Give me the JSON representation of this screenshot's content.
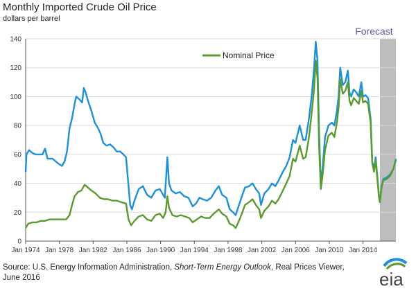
{
  "header": {
    "title": "Monthly Imported Crude Oil Price",
    "subtitle": "dollars per barrel"
  },
  "source": {
    "prefix": "Source: U.S. Energy Information Administration, ",
    "italic": "Short-Term Energy Outlook",
    "suffix": ", Real Prices Viewer,",
    "line2": "June 2016"
  },
  "logo_text": "eia",
  "colors": {
    "real": "#1e90d6",
    "nominal": "#5a9a2e",
    "forecast_band": "#bdbdbd",
    "forecast_label": "#5b5da8",
    "grid": "#d9d9d9"
  },
  "chart_data": {
    "type": "line",
    "title": "Monthly Imported Crude Oil Price",
    "ylabel": "dollars per barrel",
    "ylim": [
      0,
      140
    ],
    "xlim": [
      1974.0,
      2017.9
    ],
    "yticks": [
      0,
      20,
      40,
      60,
      80,
      100,
      120,
      140
    ],
    "xticks": [
      {
        "value": 1974,
        "label": "Jan 1974"
      },
      {
        "value": 1978,
        "label": "Jan 1978"
      },
      {
        "value": 1982,
        "label": "Jan 1982"
      },
      {
        "value": 1986,
        "label": "Jan 1986"
      },
      {
        "value": 1990,
        "label": "Jan 1990"
      },
      {
        "value": 1994,
        "label": "Jan 1994"
      },
      {
        "value": 1998,
        "label": "Jan 1998"
      },
      {
        "value": 2002,
        "label": "Jan 2002"
      },
      {
        "value": 2006,
        "label": "Jan 2006"
      },
      {
        "value": 2010,
        "label": "Jan 2010"
      },
      {
        "value": 2014,
        "label": "Jan 2014"
      }
    ],
    "grid": "horizontal",
    "forecast": {
      "label": "Forecast",
      "start": 2016.0,
      "end": 2017.9
    },
    "legend": {
      "position": "top-center",
      "entries": [
        "Nominal Price"
      ]
    },
    "series": [
      {
        "key": "real",
        "points": [
          [
            1974.0,
            48
          ],
          [
            1974.1,
            60
          ],
          [
            1974.4,
            63
          ],
          [
            1974.8,
            61
          ],
          [
            1975.2,
            60
          ],
          [
            1975.6,
            60
          ],
          [
            1976.0,
            60
          ],
          [
            1976.3,
            64
          ],
          [
            1976.6,
            57
          ],
          [
            1977.2,
            57
          ],
          [
            1977.8,
            54
          ],
          [
            1978.3,
            52
          ],
          [
            1978.6,
            55
          ],
          [
            1978.9,
            62
          ],
          [
            1979.2,
            78
          ],
          [
            1979.5,
            85
          ],
          [
            1979.8,
            95
          ],
          [
            1980.0,
            100
          ],
          [
            1980.4,
            98
          ],
          [
            1980.7,
            96
          ],
          [
            1980.9,
            106
          ],
          [
            1981.1,
            103
          ],
          [
            1981.4,
            97
          ],
          [
            1981.8,
            90
          ],
          [
            1982.2,
            82
          ],
          [
            1982.6,
            78
          ],
          [
            1982.9,
            74
          ],
          [
            1983.2,
            68
          ],
          [
            1983.6,
            66
          ],
          [
            1984.0,
            67
          ],
          [
            1984.4,
            65
          ],
          [
            1984.8,
            62
          ],
          [
            1985.2,
            62
          ],
          [
            1985.6,
            60
          ],
          [
            1985.9,
            58
          ],
          [
            1986.2,
            38
          ],
          [
            1986.4,
            25
          ],
          [
            1986.6,
            22
          ],
          [
            1986.9,
            28
          ],
          [
            1987.4,
            36
          ],
          [
            1987.9,
            38
          ],
          [
            1988.4,
            32
          ],
          [
            1988.9,
            30
          ],
          [
            1989.4,
            35
          ],
          [
            1989.9,
            36
          ],
          [
            1990.2,
            33
          ],
          [
            1990.5,
            30
          ],
          [
            1990.8,
            58
          ],
          [
            1991.0,
            40
          ],
          [
            1991.3,
            35
          ],
          [
            1991.8,
            33
          ],
          [
            1992.3,
            34
          ],
          [
            1992.8,
            31
          ],
          [
            1993.3,
            30
          ],
          [
            1993.8,
            24
          ],
          [
            1994.2,
            26
          ],
          [
            1994.6,
            30
          ],
          [
            1995.0,
            29
          ],
          [
            1995.5,
            28
          ],
          [
            1996.0,
            30
          ],
          [
            1996.5,
            35
          ],
          [
            1996.9,
            38
          ],
          [
            1997.3,
            32
          ],
          [
            1997.8,
            30
          ],
          [
            1998.2,
            22
          ],
          [
            1998.6,
            20
          ],
          [
            1998.9,
            18
          ],
          [
            1999.3,
            25
          ],
          [
            1999.7,
            32
          ],
          [
            2000.0,
            37
          ],
          [
            2000.5,
            38
          ],
          [
            2000.9,
            40
          ],
          [
            2001.3,
            36
          ],
          [
            2001.7,
            33
          ],
          [
            2001.9,
            25
          ],
          [
            2002.3,
            33
          ],
          [
            2002.8,
            36
          ],
          [
            2003.2,
            40
          ],
          [
            2003.6,
            38
          ],
          [
            2004.0,
            42
          ],
          [
            2004.5,
            48
          ],
          [
            2004.9,
            52
          ],
          [
            2005.3,
            58
          ],
          [
            2005.7,
            70
          ],
          [
            2006.0,
            68
          ],
          [
            2006.5,
            80
          ],
          [
            2006.9,
            70
          ],
          [
            2007.2,
            70
          ],
          [
            2007.6,
            85
          ],
          [
            2007.9,
            100
          ],
          [
            2008.2,
            120
          ],
          [
            2008.4,
            138
          ],
          [
            2008.6,
            125
          ],
          [
            2008.8,
            75
          ],
          [
            2009.0,
            40
          ],
          [
            2009.2,
            50
          ],
          [
            2009.5,
            72
          ],
          [
            2009.9,
            80
          ],
          [
            2010.3,
            82
          ],
          [
            2010.6,
            80
          ],
          [
            2010.9,
            90
          ],
          [
            2011.1,
            100
          ],
          [
            2011.3,
            120
          ],
          [
            2011.6,
            108
          ],
          [
            2011.9,
            110
          ],
          [
            2012.2,
            118
          ],
          [
            2012.4,
            103
          ],
          [
            2012.6,
            100
          ],
          [
            2012.9,
            105
          ],
          [
            2013.2,
            103
          ],
          [
            2013.5,
            100
          ],
          [
            2013.8,
            110
          ],
          [
            2014.0,
            100
          ],
          [
            2014.3,
            101
          ],
          [
            2014.6,
            99
          ],
          [
            2014.9,
            85
          ],
          [
            2015.1,
            55
          ],
          [
            2015.3,
            50
          ],
          [
            2015.5,
            58
          ],
          [
            2015.7,
            45
          ],
          [
            2015.9,
            30
          ],
          [
            2016.0,
            27
          ],
          [
            2016.2,
            38
          ],
          [
            2016.4,
            43
          ],
          [
            2016.8,
            44
          ],
          [
            2017.2,
            46
          ],
          [
            2017.6,
            50
          ],
          [
            2017.9,
            57
          ]
        ]
      },
      {
        "key": "nominal",
        "name": "Nominal Price",
        "points": [
          [
            1974.0,
            9
          ],
          [
            1974.3,
            12
          ],
          [
            1974.8,
            13
          ],
          [
            1975.3,
            13
          ],
          [
            1975.8,
            14
          ],
          [
            1976.3,
            14
          ],
          [
            1976.8,
            15
          ],
          [
            1977.3,
            15
          ],
          [
            1977.8,
            15
          ],
          [
            1978.3,
            15
          ],
          [
            1978.8,
            15
          ],
          [
            1979.2,
            18
          ],
          [
            1979.5,
            25
          ],
          [
            1979.8,
            31
          ],
          [
            1980.2,
            34
          ],
          [
            1980.6,
            35
          ],
          [
            1981.0,
            39
          ],
          [
            1981.4,
            37
          ],
          [
            1981.8,
            35
          ],
          [
            1982.3,
            33
          ],
          [
            1982.8,
            30
          ],
          [
            1983.3,
            29
          ],
          [
            1983.8,
            29
          ],
          [
            1984.3,
            28
          ],
          [
            1984.8,
            28
          ],
          [
            1985.3,
            27
          ],
          [
            1985.9,
            26
          ],
          [
            1986.2,
            15
          ],
          [
            1986.5,
            11
          ],
          [
            1986.9,
            14
          ],
          [
            1987.4,
            17
          ],
          [
            1987.9,
            18
          ],
          [
            1988.4,
            15
          ],
          [
            1988.9,
            14
          ],
          [
            1989.4,
            18
          ],
          [
            1989.9,
            19
          ],
          [
            1990.3,
            16
          ],
          [
            1990.6,
            20
          ],
          [
            1990.8,
            31
          ],
          [
            1991.0,
            23
          ],
          [
            1991.4,
            18
          ],
          [
            1991.9,
            17
          ],
          [
            1992.4,
            18
          ],
          [
            1992.9,
            17
          ],
          [
            1993.4,
            16
          ],
          [
            1993.8,
            13
          ],
          [
            1994.3,
            15
          ],
          [
            1994.8,
            17
          ],
          [
            1995.3,
            16
          ],
          [
            1995.8,
            16
          ],
          [
            1996.3,
            19
          ],
          [
            1996.9,
            22
          ],
          [
            1997.3,
            19
          ],
          [
            1997.8,
            17
          ],
          [
            1998.2,
            12
          ],
          [
            1998.6,
            11
          ],
          [
            1998.9,
            9
          ],
          [
            1999.3,
            14
          ],
          [
            1999.7,
            20
          ],
          [
            2000.0,
            25
          ],
          [
            2000.5,
            27
          ],
          [
            2000.9,
            29
          ],
          [
            2001.3,
            25
          ],
          [
            2001.7,
            22
          ],
          [
            2001.9,
            16
          ],
          [
            2002.3,
            21
          ],
          [
            2002.8,
            24
          ],
          [
            2003.2,
            28
          ],
          [
            2003.6,
            26
          ],
          [
            2004.0,
            29
          ],
          [
            2004.5,
            35
          ],
          [
            2004.9,
            40
          ],
          [
            2005.3,
            45
          ],
          [
            2005.7,
            57
          ],
          [
            2006.0,
            55
          ],
          [
            2006.5,
            66
          ],
          [
            2006.9,
            57
          ],
          [
            2007.2,
            58
          ],
          [
            2007.6,
            72
          ],
          [
            2007.9,
            88
          ],
          [
            2008.2,
            105
          ],
          [
            2008.4,
            125
          ],
          [
            2008.6,
            113
          ],
          [
            2008.8,
            65
          ],
          [
            2009.0,
            36
          ],
          [
            2009.2,
            45
          ],
          [
            2009.5,
            63
          ],
          [
            2009.9,
            73
          ],
          [
            2010.3,
            75
          ],
          [
            2010.6,
            72
          ],
          [
            2010.9,
            82
          ],
          [
            2011.1,
            92
          ],
          [
            2011.3,
            112
          ],
          [
            2011.6,
            102
          ],
          [
            2011.9,
            104
          ],
          [
            2012.2,
            110
          ],
          [
            2012.4,
            97
          ],
          [
            2012.6,
            94
          ],
          [
            2012.9,
            99
          ],
          [
            2013.2,
            97
          ],
          [
            2013.5,
            95
          ],
          [
            2013.8,
            104
          ],
          [
            2014.0,
            96
          ],
          [
            2014.3,
            97
          ],
          [
            2014.6,
            95
          ],
          [
            2014.9,
            82
          ],
          [
            2015.1,
            54
          ],
          [
            2015.3,
            48
          ],
          [
            2015.5,
            56
          ],
          [
            2015.7,
            43
          ],
          [
            2015.9,
            30
          ],
          [
            2016.0,
            27
          ],
          [
            2016.2,
            37
          ],
          [
            2016.4,
            42
          ],
          [
            2016.8,
            43
          ],
          [
            2017.2,
            45
          ],
          [
            2017.6,
            50
          ],
          [
            2017.9,
            56
          ]
        ]
      }
    ]
  }
}
